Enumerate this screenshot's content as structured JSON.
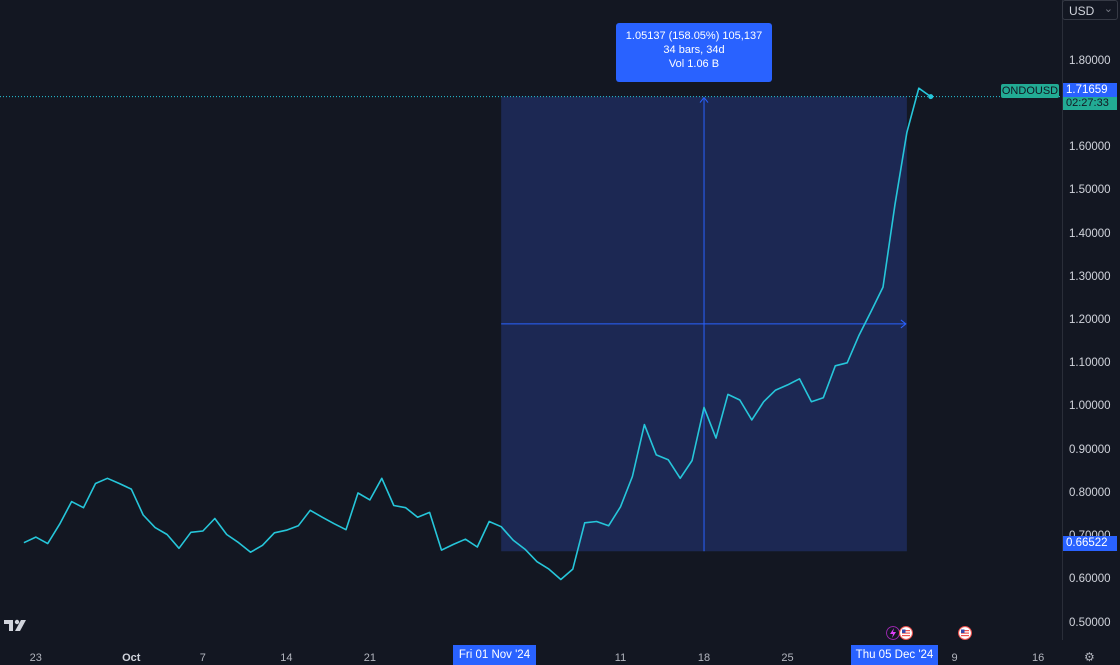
{
  "symbol": "ONDOUSD",
  "currency": "USD",
  "last_price": "1.71659",
  "countdown": "02:27:33",
  "range_low_label": "0.66522",
  "tooltip": {
    "line1": "1.05137 (158.05%) 105,137",
    "line2": "34 bars, 34d",
    "line3": "Vol 1.06 B"
  },
  "range_start_label": "Fri 01 Nov '24",
  "range_end_label": "Thu 05 Dec '24",
  "colors": {
    "background": "#131722",
    "line": "#26c6da",
    "range_fill": "#1e2b5c",
    "accent": "#2962ff",
    "badge_teal": "#22ab94"
  },
  "icons": [
    "tradingview-logo-icon",
    "flash-event-icon",
    "us-flag-event-icon",
    "us-flag-event-icon",
    "settings-gear-icon"
  ],
  "chart_data": {
    "type": "line",
    "title": "",
    "xlabel": "",
    "ylabel": "",
    "ylim": [
      0.46,
      1.94
    ],
    "y_ticks": [
      "1.80000",
      "1.70000",
      "1.60000",
      "1.50000",
      "1.40000",
      "1.30000",
      "1.20000",
      "1.10000",
      "1.00000",
      "0.90000",
      "0.80000",
      "0.70000",
      "0.60000",
      "0.50000"
    ],
    "y_tick_values": [
      1.8,
      1.7,
      1.6,
      1.5,
      1.4,
      1.3,
      1.2,
      1.1,
      1.0,
      0.9,
      0.8,
      0.7,
      0.6,
      0.5
    ],
    "x_ticks": [
      {
        "label": "23",
        "x": 1,
        "bold": false
      },
      {
        "label": "Oct",
        "x": 9,
        "bold": true
      },
      {
        "label": "7",
        "x": 15,
        "bold": false
      },
      {
        "label": "14",
        "x": 22,
        "bold": false
      },
      {
        "label": "21",
        "x": 29,
        "bold": false
      },
      {
        "label": "11",
        "x": 50,
        "bold": false
      },
      {
        "label": "18",
        "x": 57,
        "bold": false
      },
      {
        "label": "25",
        "x": 64,
        "bold": false
      },
      {
        "label": "De",
        "x": 70,
        "bold": true
      },
      {
        "label": "9",
        "x": 78,
        "bold": false
      },
      {
        "label": "16",
        "x": 85,
        "bold": false
      }
    ],
    "xlim": [
      -2,
      87
    ],
    "range": {
      "x_start": 40,
      "x_end": 74,
      "y_low": 0.66522,
      "y_high": 1.71659
    },
    "series": [
      {
        "values": [
          0.685,
          0.698,
          0.683,
          0.728,
          0.78,
          0.766,
          0.822,
          0.834,
          0.822,
          0.809,
          0.749,
          0.72,
          0.704,
          0.672,
          0.709,
          0.712,
          0.741,
          0.704,
          0.685,
          0.663,
          0.679,
          0.708,
          0.714,
          0.724,
          0.76,
          0.744,
          0.729,
          0.715,
          0.8,
          0.784,
          0.834,
          0.771,
          0.766,
          0.744,
          0.755,
          0.668,
          0.681,
          0.693,
          0.675,
          0.734,
          0.722,
          0.691,
          0.67,
          0.641,
          0.624,
          0.6,
          0.624,
          0.731,
          0.734,
          0.724,
          0.768,
          0.838,
          0.958,
          0.888,
          0.877,
          0.834,
          0.875,
          0.998,
          0.927,
          1.028,
          1.015,
          0.969,
          1.011,
          1.038,
          1.05,
          1.064,
          1.011,
          1.02,
          1.094,
          1.101,
          1.165,
          1.22,
          1.276,
          1.466,
          1.634,
          1.736,
          1.71659
        ]
      }
    ]
  }
}
